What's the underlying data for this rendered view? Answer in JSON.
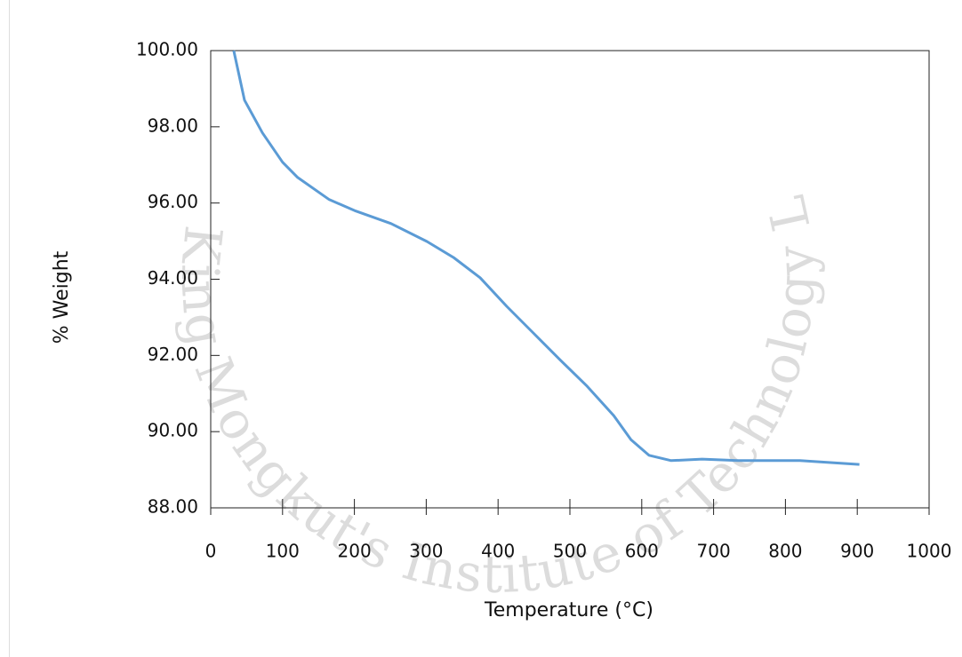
{
  "chart_data": {
    "type": "line",
    "x_label": "Temperature (°C)",
    "y_label": "% Weight",
    "watermark": "King Mongkut's Institute of Technology Ladkrabang",
    "x": [
      32,
      47,
      72,
      100,
      121,
      165,
      202,
      251,
      301,
      338,
      375,
      412,
      449,
      486,
      524,
      561,
      585,
      610,
      641,
      684,
      734,
      820,
      903
    ],
    "series": [
      {
        "color": "#5b9bd5",
        "values": [
          100,
          98.7,
          97.84,
          97.07,
          96.67,
          96.09,
          95.79,
          95.46,
          94.99,
          94.57,
          94.04,
          93.29,
          92.59,
          91.89,
          91.19,
          90.42,
          89.79,
          89.38,
          89.24,
          89.28,
          89.24,
          89.24,
          89.14
        ]
      }
    ],
    "xlim": [
      0,
      1000
    ],
    "xticks": [
      0,
      100,
      200,
      300,
      400,
      500,
      600,
      700,
      800,
      900,
      1000
    ],
    "ylim": [
      88,
      100
    ],
    "yticks": [
      {
        "value": 88,
        "label": "88.00"
      },
      {
        "value": 90,
        "label": "90.00"
      },
      {
        "value": 92,
        "label": "92.00"
      },
      {
        "value": 94,
        "label": "94.00"
      },
      {
        "value": 96,
        "label": "96.00"
      },
      {
        "value": 98,
        "label": "98.00"
      },
      {
        "value": 100,
        "label": "100.00"
      }
    ]
  }
}
